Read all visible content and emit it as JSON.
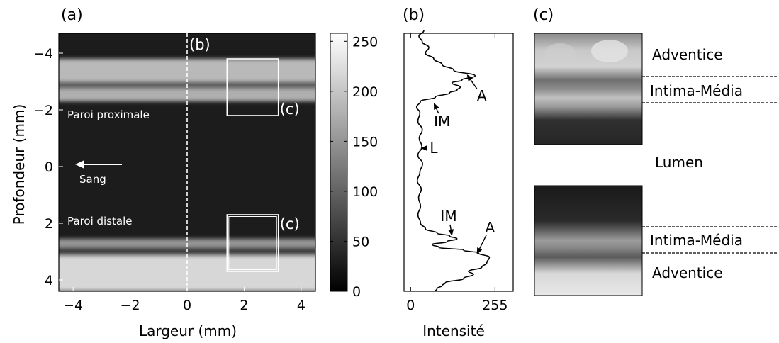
{
  "panels": {
    "a": {
      "label": "(a)",
      "xlabel": "Largeur (mm)",
      "ylabel": "Profondeur (mm)",
      "xlim": [
        -4.5,
        4.5
      ],
      "ylim": [
        -4.7,
        4.4
      ],
      "xticks": [
        -4,
        -2,
        0,
        2,
        4
      ],
      "yticks": [
        -4,
        -2,
        0,
        2,
        4
      ],
      "xtick_labels": [
        "−4",
        "−2",
        "0",
        "2",
        "4"
      ],
      "ytick_labels": [
        "−4",
        "−2",
        "0",
        "2",
        "4"
      ],
      "profile_marker": "(b)",
      "profile_x": 0,
      "roi_label_top": "(c)",
      "roi_label_bottom": "(c)",
      "roi_top": {
        "x": [
          1.4,
          3.2
        ],
        "y": [
          -3.8,
          -1.8
        ]
      },
      "roi_bottom": {
        "x": [
          1.4,
          3.2
        ],
        "y": [
          1.7,
          3.7
        ]
      },
      "text_proximal": "Paroi proximale",
      "text_distal": "Paroi distale",
      "text_blood": "Sang",
      "image_layers": [
        {
          "y": [
            -3.8,
            -3.0
          ],
          "intensity": 185
        },
        {
          "y": [
            -3.0,
            -2.75
          ],
          "intensity": 90
        },
        {
          "y": [
            -2.75,
            -2.3
          ],
          "intensity": 175
        },
        {
          "y": [
            2.55,
            2.85
          ],
          "intensity": 150
        },
        {
          "y": [
            2.85,
            3.15
          ],
          "intensity": 60
        },
        {
          "y": [
            3.15,
            4.4
          ],
          "intensity": 215
        }
      ]
    },
    "colorbar": {
      "ticks": [
        0,
        50,
        100,
        150,
        200,
        250
      ],
      "range": [
        0,
        258
      ]
    },
    "b": {
      "label": "(b)",
      "xlabel": "Intensité",
      "xticks": [
        0,
        255
      ],
      "xtick_labels": [
        "0",
        "255"
      ],
      "xlim": [
        -20,
        310
      ],
      "profile": [
        [
          -4.8,
          40
        ],
        [
          -4.6,
          25
        ],
        [
          -4.4,
          35
        ],
        [
          -4.2,
          55
        ],
        [
          -4.0,
          45
        ],
        [
          -3.8,
          70
        ],
        [
          -3.6,
          95
        ],
        [
          -3.4,
          130
        ],
        [
          -3.2,
          195
        ],
        [
          -3.05,
          155
        ],
        [
          -2.95,
          125
        ],
        [
          -2.8,
          150
        ],
        [
          -2.7,
          140
        ],
        [
          -2.6,
          118
        ],
        [
          -2.45,
          75
        ],
        [
          -2.3,
          30
        ],
        [
          -2.1,
          18
        ],
        [
          -1.9,
          28
        ],
        [
          -1.6,
          22
        ],
        [
          -1.3,
          35
        ],
        [
          -1.0,
          26
        ],
        [
          -0.7,
          34
        ],
        [
          -0.4,
          22
        ],
        [
          -0.1,
          36
        ],
        [
          0.2,
          28
        ],
        [
          0.5,
          20
        ],
        [
          0.8,
          32
        ],
        [
          1.1,
          24
        ],
        [
          1.4,
          30
        ],
        [
          1.7,
          22
        ],
        [
          2.0,
          30
        ],
        [
          2.2,
          45
        ],
        [
          2.35,
          80
        ],
        [
          2.45,
          118
        ],
        [
          2.55,
          140
        ],
        [
          2.65,
          110
        ],
        [
          2.75,
          65
        ],
        [
          2.85,
          85
        ],
        [
          2.95,
          160
        ],
        [
          3.05,
          205
        ],
        [
          3.2,
          238
        ],
        [
          3.4,
          230
        ],
        [
          3.55,
          215
        ],
        [
          3.7,
          175
        ],
        [
          3.8,
          190
        ],
        [
          3.95,
          160
        ],
        [
          4.1,
          105
        ],
        [
          4.2,
          95
        ],
        [
          4.3,
          80
        ],
        [
          4.4,
          75
        ]
      ],
      "annotations": [
        {
          "text": "A",
          "tip": [
            170,
            -3.25
          ],
          "pos": [
            215,
            -2.5
          ]
        },
        {
          "text": "IM",
          "tip": [
            70,
            -2.25
          ],
          "pos": [
            95,
            -1.6
          ]
        },
        {
          "text": "L",
          "tip": [
            30,
            -0.65
          ],
          "pos": [
            70,
            -0.65
          ]
        },
        {
          "text": "IM",
          "tip": [
            125,
            2.45
          ],
          "pos": [
            115,
            1.75
          ]
        },
        {
          "text": "A",
          "tip": [
            200,
            3.1
          ],
          "pos": [
            240,
            2.15
          ]
        }
      ]
    },
    "c": {
      "label": "(c)",
      "adventice_top": "Adventice",
      "intima_top": "Intima-Média",
      "lumen": "Lumen",
      "intima_bottom": "Intima-Média",
      "adventice_bottom": "Adventice"
    }
  }
}
